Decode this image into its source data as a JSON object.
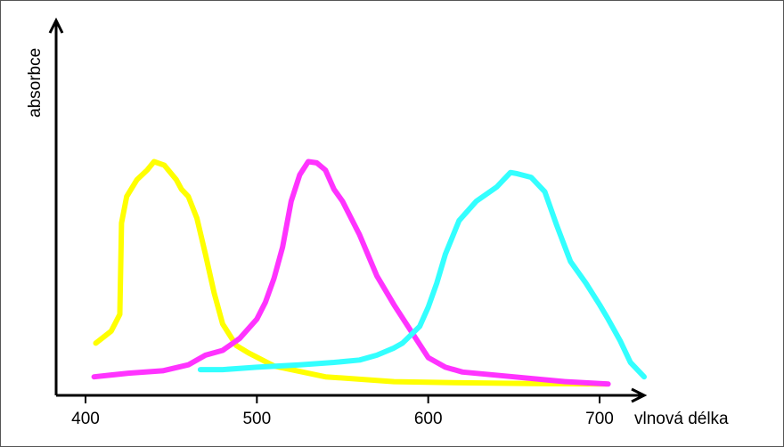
{
  "chart_data": {
    "type": "line",
    "title": "",
    "xlabel": "vlnová délka",
    "ylabel": "absorbce",
    "xlim": [
      380,
      720
    ],
    "ylim": [
      0,
      1
    ],
    "x_ticks": [
      400,
      500,
      600,
      700
    ],
    "x_tick_labels": [
      "400",
      "500",
      "600",
      "700"
    ],
    "grid": false,
    "legend": "none",
    "series": [
      {
        "color": "#ffff00",
        "points": [
          [
            406,
            0.18
          ],
          [
            415,
            0.23
          ],
          [
            420,
            0.3
          ],
          [
            421,
            0.68
          ],
          [
            424,
            0.79
          ],
          [
            430,
            0.86
          ],
          [
            436,
            0.9
          ],
          [
            440,
            0.935
          ],
          [
            446,
            0.92
          ],
          [
            453,
            0.86
          ],
          [
            456,
            0.82
          ],
          [
            460,
            0.79
          ],
          [
            465,
            0.7
          ],
          [
            470,
            0.55
          ],
          [
            475,
            0.39
          ],
          [
            480,
            0.26
          ],
          [
            488,
            0.17
          ],
          [
            495,
            0.14
          ],
          [
            510,
            0.085
          ],
          [
            540,
            0.04
          ],
          [
            580,
            0.02
          ],
          [
            620,
            0.015
          ],
          [
            660,
            0.012
          ],
          [
            704,
            0.01
          ]
        ]
      },
      {
        "color": "#ff33ff",
        "points": [
          [
            405,
            0.04
          ],
          [
            425,
            0.055
          ],
          [
            445,
            0.065
          ],
          [
            460,
            0.09
          ],
          [
            470,
            0.13
          ],
          [
            480,
            0.15
          ],
          [
            490,
            0.2
          ],
          [
            500,
            0.28
          ],
          [
            505,
            0.35
          ],
          [
            510,
            0.45
          ],
          [
            515,
            0.58
          ],
          [
            520,
            0.77
          ],
          [
            525,
            0.88
          ],
          [
            530,
            0.935
          ],
          [
            535,
            0.93
          ],
          [
            540,
            0.9
          ],
          [
            545,
            0.82
          ],
          [
            550,
            0.77
          ],
          [
            560,
            0.63
          ],
          [
            570,
            0.46
          ],
          [
            580,
            0.34
          ],
          [
            590,
            0.23
          ],
          [
            600,
            0.12
          ],
          [
            610,
            0.08
          ],
          [
            620,
            0.06
          ],
          [
            650,
            0.04
          ],
          [
            680,
            0.02
          ],
          [
            705,
            0.01
          ]
        ]
      },
      {
        "color": "#33ffff",
        "points": [
          [
            467,
            0.07
          ],
          [
            480,
            0.07
          ],
          [
            500,
            0.08
          ],
          [
            525,
            0.09
          ],
          [
            545,
            0.1
          ],
          [
            560,
            0.11
          ],
          [
            570,
            0.13
          ],
          [
            580,
            0.16
          ],
          [
            585,
            0.18
          ],
          [
            595,
            0.25
          ],
          [
            600,
            0.33
          ],
          [
            605,
            0.43
          ],
          [
            610,
            0.55
          ],
          [
            618,
            0.69
          ],
          [
            628,
            0.77
          ],
          [
            640,
            0.83
          ],
          [
            648,
            0.89
          ],
          [
            652,
            0.885
          ],
          [
            660,
            0.87
          ],
          [
            668,
            0.81
          ],
          [
            675,
            0.67
          ],
          [
            683,
            0.52
          ],
          [
            692,
            0.43
          ],
          [
            700,
            0.34
          ],
          [
            705,
            0.28
          ],
          [
            712,
            0.19
          ],
          [
            718,
            0.1
          ],
          [
            726,
            0.04
          ]
        ]
      }
    ]
  }
}
